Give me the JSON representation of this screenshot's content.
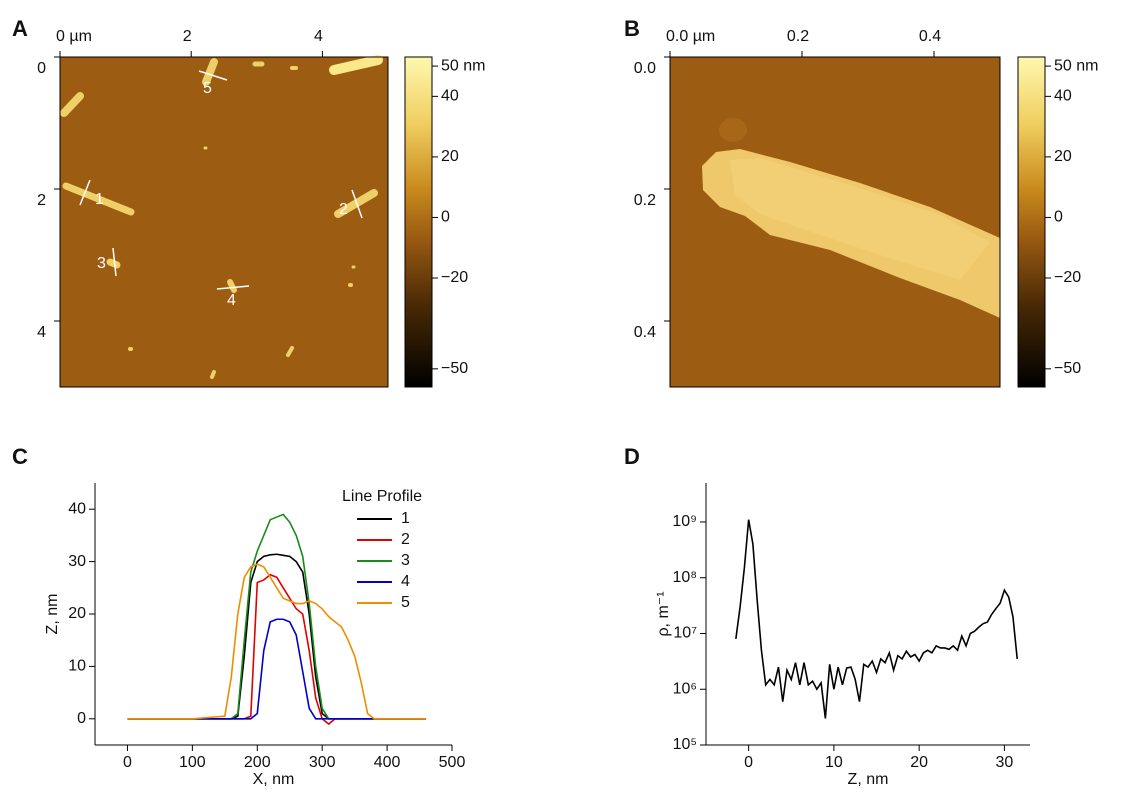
{
  "chart_data": [
    {
      "type": "image",
      "label": "A",
      "xlim": [
        0,
        5
      ],
      "ylim": [
        0,
        5
      ],
      "xticks": [
        {
          "value": 0,
          "label": "0 µm"
        },
        2,
        4
      ],
      "yticks": [
        0,
        2,
        4
      ],
      "colorbar": {
        "lim": [
          -56,
          53
        ],
        "ticks": [
          {
            "value": 50,
            "label": "50 nm"
          },
          40,
          20,
          0,
          {
            "value": -20,
            "label": "−20"
          },
          {
            "value": -50,
            "label": "−50"
          }
        ]
      },
      "annotations": [
        "1",
        "2",
        "3",
        "4",
        "5"
      ]
    },
    {
      "type": "image",
      "label": "B",
      "xlim": [
        0,
        0.5
      ],
      "ylim": [
        0,
        0.5
      ],
      "xticks": [
        {
          "value": 0,
          "label": "0.0 µm"
        },
        0.2,
        0.4
      ],
      "yticks": [
        {
          "value": 0,
          "label": "0.0"
        },
        0.2,
        0.4
      ],
      "colorbar": {
        "lim": [
          -56,
          53
        ],
        "ticks": [
          {
            "value": 50,
            "label": "50 nm"
          },
          40,
          20,
          0,
          {
            "value": -20,
            "label": "−20"
          },
          {
            "value": -50,
            "label": "−50"
          }
        ]
      }
    },
    {
      "type": "line",
      "label": "C",
      "x_label": "X, nm",
      "y_label": "Z, nm",
      "xlim": [
        -50,
        500
      ],
      "ylim": [
        -5,
        45
      ],
      "xticks": [
        0,
        100,
        200,
        300,
        400,
        500
      ],
      "yticks": [
        0,
        10,
        20,
        30,
        40
      ],
      "legend": "top-right",
      "legend_title": "Line Profile",
      "x": [
        0,
        50,
        100,
        150,
        160,
        170,
        180,
        190,
        200,
        210,
        220,
        230,
        240,
        250,
        260,
        270,
        280,
        290,
        300,
        310,
        320,
        330,
        340,
        350,
        360,
        370,
        380,
        400,
        430,
        460
      ],
      "series": [
        {
          "name": "1",
          "color": "#000000",
          "values": [
            0,
            0,
            0,
            0,
            0,
            0.5,
            12,
            26,
            30,
            31,
            31.3,
            31.4,
            31.2,
            31,
            30,
            28,
            20,
            8,
            1,
            0,
            0,
            0,
            0,
            0,
            0,
            0,
            0,
            0,
            0,
            0
          ]
        },
        {
          "name": "2",
          "color": "#e00000",
          "values": [
            0,
            0,
            0,
            0,
            0,
            0,
            0,
            0.5,
            26,
            26.5,
            27.5,
            27,
            25,
            23,
            21,
            20,
            13,
            4,
            0,
            -1,
            0,
            0,
            0,
            0,
            0,
            0,
            0,
            0,
            0,
            0
          ]
        },
        {
          "name": "3",
          "color": "#1a8a1a",
          "values": [
            0,
            0,
            0,
            0,
            0,
            1,
            15,
            28,
            32,
            35,
            38,
            38.5,
            39,
            37.5,
            35,
            31,
            22,
            10,
            2,
            0,
            0,
            0,
            0,
            0,
            0,
            0,
            0,
            0,
            0,
            0
          ]
        },
        {
          "name": "4",
          "color": "#0000cc",
          "values": [
            0,
            0,
            0,
            0,
            0,
            0,
            0,
            0,
            1,
            13,
            18.5,
            19,
            19,
            18.5,
            16,
            9,
            2,
            0,
            0,
            0,
            0,
            0,
            0,
            0,
            0,
            0,
            0,
            0,
            0,
            0
          ]
        },
        {
          "name": "5",
          "color": "#f08c00",
          "values": [
            0,
            0,
            0,
            0.5,
            8,
            20,
            27,
            29,
            29.5,
            29,
            27,
            25,
            23,
            22.5,
            22,
            22,
            22.5,
            22,
            21,
            19.5,
            18.5,
            17.5,
            15,
            12,
            7,
            1,
            0,
            0,
            0,
            0
          ]
        }
      ]
    },
    {
      "type": "line",
      "label": "D",
      "x_label": "Z, nm",
      "y_label": "ρ, m⁻¹",
      "log_y": true,
      "color": "#000000",
      "xlim": [
        -5,
        33
      ],
      "ylim": [
        100000.0,
        5000000000.0
      ],
      "xticks": [
        0,
        10,
        20,
        30
      ],
      "yticks": [
        {
          "value": 100000.0,
          "label": "10⁵"
        },
        {
          "value": 1000000.0,
          "label": "10⁶"
        },
        {
          "value": 10000000.0,
          "label": "10⁷"
        },
        {
          "value": 100000000.0,
          "label": "10⁸"
        },
        {
          "value": 1000000000.0,
          "label": "10⁹"
        }
      ],
      "x": [
        -1.5,
        -1,
        -0.5,
        0,
        0.5,
        1,
        1.5,
        2,
        2.5,
        3,
        3.5,
        4,
        4.5,
        5,
        5.5,
        6,
        6.5,
        7,
        7.5,
        8,
        8.5,
        9,
        9.5,
        10,
        10.5,
        11,
        11.5,
        12,
        12.5,
        13,
        13.5,
        14,
        14.5,
        15,
        15.5,
        16,
        16.5,
        17,
        17.5,
        18,
        18.5,
        19,
        19.5,
        20,
        20.5,
        21,
        21.5,
        22,
        22.5,
        23,
        23.5,
        24,
        24.5,
        25,
        25.5,
        26,
        26.5,
        27,
        27.5,
        28,
        28.5,
        29,
        29.5,
        30,
        30.5,
        31,
        31.5
      ],
      "values": [
        8000000.0,
        30000000.0,
        150000000.0,
        1100000000.0,
        400000000.0,
        40000000.0,
        5000000.0,
        1200000.0,
        1500000.0,
        1200000.0,
        2500000.0,
        600000.0,
        2200000.0,
        1500000.0,
        3000000.0,
        1200000.0,
        3000000.0,
        1200000.0,
        1400000.0,
        1000000.0,
        1300000.0,
        300000.0,
        2800000.0,
        1000000.0,
        2500000.0,
        1200000.0,
        2400000.0,
        2500000.0,
        1500000.0,
        600000.0,
        2800000.0,
        2500000.0,
        3200000.0,
        2000000.0,
        3500000.0,
        3000000.0,
        4500000.0,
        2200000.0,
        4000000.0,
        3500000.0,
        4800000.0,
        3800000.0,
        4200000.0,
        3200000.0,
        4500000.0,
        5000000.0,
        4500000.0,
        6000000.0,
        5500000.0,
        5500000.0,
        5200000.0,
        6000000.0,
        5000000.0,
        9000000.0,
        6000000.0,
        10000000.0,
        11000000.0,
        13000000.0,
        15000000.0,
        16000000.0,
        22000000.0,
        28000000.0,
        35000000.0,
        60000000.0,
        45000000.0,
        20000000.0,
        3500000.0
      ]
    }
  ]
}
